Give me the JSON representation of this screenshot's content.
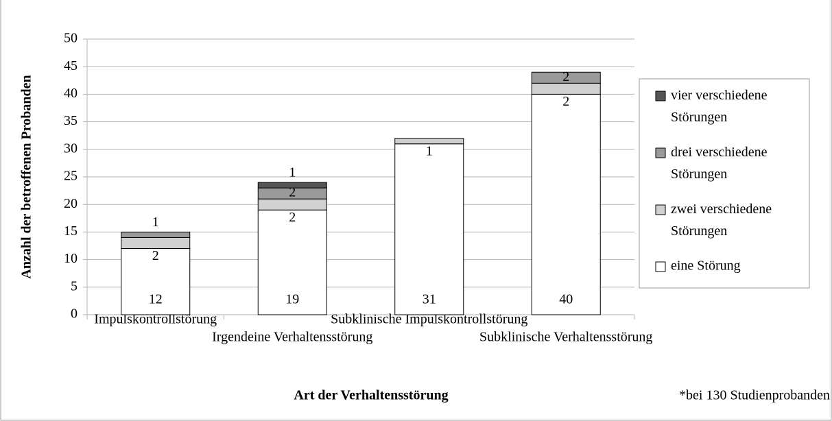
{
  "chart_data": {
    "type": "stacked_bar",
    "ylabel": "Anzahl der betroffenen Probanden",
    "xlabel": "Art der Verhaltensstörung",
    "note": "*bei 130 Studienprobanden",
    "categories": [
      "Impulskontrollstörung",
      "Irgendeine Verhaltensstörung",
      "Subklinische Impulskontrollstörung",
      "Subklinische Verhaltensstörung"
    ],
    "series": [
      {
        "name": "eine Störung",
        "color": "#ffffff",
        "values": [
          12,
          19,
          31,
          40
        ]
      },
      {
        "name": "zwei verschiedene Störungen",
        "color": "#d0d0d0",
        "values": [
          2,
          2,
          1,
          2
        ]
      },
      {
        "name": "drei verschiedene Störungen",
        "color": "#9a9a9a",
        "values": [
          1,
          2,
          0,
          2
        ]
      },
      {
        "name": "vier verschiedene Störungen",
        "color": "#555555",
        "values": [
          0,
          1,
          0,
          0
        ]
      }
    ],
    "ylim": [
      0,
      50
    ],
    "yticks": [
      0,
      5,
      10,
      15,
      20,
      25,
      30,
      35,
      40,
      45,
      50
    ],
    "grid": true,
    "legend": "right"
  }
}
